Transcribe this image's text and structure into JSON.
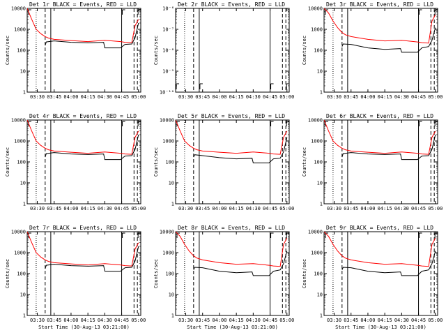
{
  "chart_data": [
    {
      "type": "line",
      "title": "Det 1r BLACK = Events, RED = LLD",
      "xlabel": "",
      "ylabel": "Counts/sec",
      "yscale": "log",
      "ylim": [
        1,
        10000
      ],
      "yticks": [
        "1",
        "10",
        "100",
        "1000",
        "10000"
      ],
      "xticks": [
        "03:30",
        "03:45",
        "04:00",
        "04:15",
        "04:30",
        "04:45",
        "05:00"
      ],
      "xrange": [
        "03:21",
        "05:02"
      ],
      "vlines": {
        "dotted": [
          "03:29"
        ],
        "dashed": [
          "03:37",
          "04:56",
          "04:59"
        ],
        "solid": [
          "03:42",
          "04:45"
        ]
      },
      "corner_marks": [],
      "series": [
        {
          "color": "#ff0000",
          "x": [
            "03:21",
            "03:25",
            "03:29",
            "03:33",
            "03:37",
            "03:40",
            "03:45",
            "04:00",
            "04:15",
            "04:30",
            "04:44",
            "04:48",
            "04:54",
            "04:57",
            "05:00"
          ],
          "y": [
            10000,
            3000,
            1000,
            620,
            450,
            380,
            330,
            290,
            260,
            300,
            260,
            240,
            230,
            1500,
            3000
          ]
        },
        {
          "color": "#000000",
          "x": [
            "03:37",
            "03:38",
            "03:45",
            "04:00",
            "04:15",
            "04:29",
            "04:30",
            "04:44",
            "04:48",
            "04:54",
            "04:57",
            "05:00"
          ],
          "y": [
            170,
            250,
            280,
            240,
            225,
            240,
            130,
            130,
            190,
            200,
            400,
            2000
          ]
        }
      ]
    },
    {
      "type": "line",
      "title": "Det 2r BLACK = Events, RED = LLD",
      "xlabel": "",
      "ylabel": "Counts/sec",
      "yscale": "log",
      "ylim": [
        1e-10,
        1e-06
      ],
      "yticks": [
        "10⁻¹⁰",
        "10⁻⁹",
        "10⁻⁸",
        "10⁻⁷",
        "10⁻⁶"
      ],
      "xticks": [
        "03:30",
        "03:45",
        "04:00",
        "04:15",
        "04:30",
        "04:45",
        "05:00"
      ],
      "xrange": [
        "03:21",
        "05:02"
      ],
      "vlines": {
        "dotted": [
          "03:29"
        ],
        "dashed": [
          "03:37",
          "04:56",
          "04:59"
        ],
        "solid": [
          "03:42",
          "04:45"
        ]
      },
      "corner_marks": [
        "03:21",
        "03:42",
        "04:45",
        "04:59"
      ],
      "series": []
    },
    {
      "type": "line",
      "title": "Det 3r BLACK = Events, RED = LLD",
      "xlabel": "",
      "ylabel": "Counts/sec",
      "yscale": "log",
      "ylim": [
        1,
        10000
      ],
      "yticks": [
        "1",
        "10",
        "100",
        "1000",
        "10000"
      ],
      "xticks": [
        "03:30",
        "03:45",
        "04:00",
        "04:15",
        "04:30",
        "04:45",
        "05:00"
      ],
      "xrange": [
        "03:21",
        "05:02"
      ],
      "vlines": {
        "dotted": [
          "03:29"
        ],
        "dashed": [
          "03:37",
          "04:56",
          "04:59"
        ],
        "solid": [
          "03:42",
          "04:45"
        ]
      },
      "corner_marks": [],
      "series": [
        {
          "color": "#ff0000",
          "x": [
            "03:21",
            "03:25",
            "03:29",
            "03:33",
            "03:37",
            "03:40",
            "03:45",
            "04:00",
            "04:15",
            "04:30",
            "04:44",
            "04:48",
            "04:54",
            "04:57",
            "05:00"
          ],
          "y": [
            10000,
            6000,
            2500,
            1200,
            700,
            550,
            450,
            330,
            280,
            300,
            250,
            230,
            220,
            2500,
            5000
          ]
        },
        {
          "color": "#000000",
          "x": [
            "03:37",
            "03:38",
            "03:45",
            "04:00",
            "04:15",
            "04:29",
            "04:30",
            "04:44",
            "04:48",
            "04:54",
            "04:57",
            "05:00"
          ],
          "y": [
            150,
            200,
            190,
            130,
            110,
            120,
            80,
            80,
            130,
            150,
            300,
            1200
          ]
        }
      ]
    },
    {
      "type": "line",
      "title": "Det 4r BLACK = Events, RED = LLD",
      "xlabel": "",
      "ylabel": "Counts/sec",
      "yscale": "log",
      "ylim": [
        1,
        10000
      ],
      "yticks": [
        "1",
        "10",
        "100",
        "1000",
        "10000"
      ],
      "xticks": [
        "03:30",
        "03:45",
        "04:00",
        "04:15",
        "04:30",
        "04:45",
        "05:00"
      ],
      "xrange": [
        "03:21",
        "05:02"
      ],
      "vlines": {
        "dotted": [
          "03:29"
        ],
        "dashed": [
          "03:37",
          "04:56",
          "04:59"
        ],
        "solid": [
          "03:42",
          "04:45"
        ]
      },
      "corner_marks": [],
      "series": [
        {
          "color": "#ff0000",
          "x": [
            "03:21",
            "03:25",
            "03:29",
            "03:33",
            "03:37",
            "03:40",
            "03:45",
            "04:00",
            "04:15",
            "04:30",
            "04:44",
            "04:48",
            "04:54",
            "04:57",
            "05:00"
          ],
          "y": [
            10000,
            3000,
            1000,
            620,
            450,
            380,
            330,
            290,
            260,
            300,
            260,
            240,
            230,
            1500,
            3000
          ]
        },
        {
          "color": "#000000",
          "x": [
            "03:37",
            "03:38",
            "03:45",
            "04:00",
            "04:15",
            "04:29",
            "04:30",
            "04:44",
            "04:48",
            "04:54",
            "04:57",
            "05:00"
          ],
          "y": [
            170,
            250,
            280,
            240,
            225,
            240,
            130,
            130,
            190,
            200,
            400,
            2000
          ]
        }
      ]
    },
    {
      "type": "line",
      "title": "Det 5r BLACK = Events, RED = LLD",
      "xlabel": "",
      "ylabel": "Counts/sec",
      "yscale": "log",
      "ylim": [
        1,
        10000
      ],
      "yticks": [
        "1",
        "10",
        "100",
        "1000",
        "10000"
      ],
      "xticks": [
        "03:30",
        "03:45",
        "04:00",
        "04:15",
        "04:30",
        "04:45",
        "05:00"
      ],
      "xrange": [
        "03:21",
        "05:02"
      ],
      "vlines": {
        "dotted": [
          "03:29"
        ],
        "dashed": [
          "03:37",
          "04:56",
          "04:59"
        ],
        "solid": [
          "03:42",
          "04:45"
        ]
      },
      "corner_marks": [],
      "series": [
        {
          "color": "#ff0000",
          "x": [
            "03:21",
            "03:25",
            "03:29",
            "03:33",
            "03:37",
            "03:40",
            "03:45",
            "04:00",
            "04:15",
            "04:30",
            "04:44",
            "04:48",
            "04:54",
            "04:57",
            "05:00"
          ],
          "y": [
            10000,
            3000,
            1000,
            620,
            450,
            380,
            330,
            290,
            260,
            300,
            260,
            240,
            230,
            1500,
            3000
          ]
        },
        {
          "color": "#000000",
          "x": [
            "03:37",
            "03:38",
            "03:45",
            "04:00",
            "04:15",
            "04:29",
            "04:30",
            "04:44",
            "04:48",
            "04:54",
            "04:57",
            "05:00"
          ],
          "y": [
            170,
            220,
            200,
            160,
            140,
            150,
            90,
            90,
            140,
            150,
            300,
            1500
          ]
        }
      ]
    },
    {
      "type": "line",
      "title": "Det 6r BLACK = Events, RED = LLD",
      "xlabel": "",
      "ylabel": "Counts/sec",
      "yscale": "log",
      "ylim": [
        1,
        10000
      ],
      "yticks": [
        "1",
        "10",
        "100",
        "1000",
        "10000"
      ],
      "xticks": [
        "03:30",
        "03:45",
        "04:00",
        "04:15",
        "04:30",
        "04:45",
        "05:00"
      ],
      "xrange": [
        "03:21",
        "05:02"
      ],
      "vlines": {
        "dotted": [
          "03:29"
        ],
        "dashed": [
          "03:37",
          "04:56",
          "04:59"
        ],
        "solid": [
          "03:42",
          "04:45"
        ]
      },
      "corner_marks": [],
      "series": [
        {
          "color": "#ff0000",
          "x": [
            "03:21",
            "03:25",
            "03:29",
            "03:33",
            "03:37",
            "03:40",
            "03:45",
            "04:00",
            "04:15",
            "04:30",
            "04:44",
            "04:48",
            "04:54",
            "04:57",
            "05:00"
          ],
          "y": [
            10000,
            3000,
            1000,
            620,
            450,
            380,
            330,
            290,
            260,
            300,
            260,
            240,
            230,
            1500,
            3000
          ]
        },
        {
          "color": "#000000",
          "x": [
            "03:37",
            "03:38",
            "03:45",
            "04:00",
            "04:15",
            "04:29",
            "04:30",
            "04:44",
            "04:48",
            "04:54",
            "04:57",
            "05:00"
          ],
          "y": [
            170,
            250,
            280,
            240,
            225,
            240,
            130,
            130,
            190,
            200,
            400,
            2000
          ]
        }
      ]
    },
    {
      "type": "line",
      "title": "Det 7r BLACK = Events, RED = LLD",
      "xlabel": "Start Time (30-Aug-13 03:21:00)",
      "ylabel": "Counts/sec",
      "yscale": "log",
      "ylim": [
        1,
        10000
      ],
      "yticks": [
        "1",
        "10",
        "100",
        "1000",
        "10000"
      ],
      "xticks": [
        "03:30",
        "03:45",
        "04:00",
        "04:15",
        "04:30",
        "04:45",
        "05:00"
      ],
      "xrange": [
        "03:21",
        "05:02"
      ],
      "vlines": {
        "dotted": [
          "03:29"
        ],
        "dashed": [
          "03:37",
          "04:56",
          "04:59"
        ],
        "solid": [
          "03:42",
          "04:45"
        ]
      },
      "corner_marks": [],
      "series": [
        {
          "color": "#ff0000",
          "x": [
            "03:21",
            "03:25",
            "03:29",
            "03:33",
            "03:37",
            "03:40",
            "03:45",
            "04:00",
            "04:15",
            "04:30",
            "04:44",
            "04:48",
            "04:54",
            "04:57",
            "05:00"
          ],
          "y": [
            10000,
            3000,
            1000,
            620,
            450,
            380,
            330,
            290,
            260,
            300,
            260,
            240,
            230,
            1500,
            3000
          ]
        },
        {
          "color": "#000000",
          "x": [
            "03:37",
            "03:38",
            "03:45",
            "04:00",
            "04:15",
            "04:29",
            "04:30",
            "04:44",
            "04:48",
            "04:54",
            "04:57",
            "05:00"
          ],
          "y": [
            170,
            250,
            280,
            240,
            225,
            240,
            130,
            130,
            190,
            200,
            400,
            2000
          ]
        }
      ]
    },
    {
      "type": "line",
      "title": "Det 8r BLACK = Events, RED = LLD",
      "xlabel": "Start Time (30-Aug-13 03:21:00)",
      "ylabel": "Counts/sec",
      "yscale": "log",
      "ylim": [
        1,
        10000
      ],
      "yticks": [
        "1",
        "10",
        "100",
        "1000",
        "10000"
      ],
      "xticks": [
        "03:30",
        "03:45",
        "04:00",
        "04:15",
        "04:30",
        "04:45",
        "05:00"
      ],
      "xrange": [
        "03:21",
        "05:02"
      ],
      "vlines": {
        "dotted": [
          "03:29"
        ],
        "dashed": [
          "03:37",
          "04:56",
          "04:59"
        ],
        "solid": [
          "03:42",
          "04:45"
        ]
      },
      "corner_marks": [],
      "series": [
        {
          "color": "#ff0000",
          "x": [
            "03:21",
            "03:25",
            "03:29",
            "03:33",
            "03:37",
            "03:40",
            "03:45",
            "04:00",
            "04:15",
            "04:30",
            "04:44",
            "04:48",
            "04:54",
            "04:57",
            "05:00"
          ],
          "y": [
            10000,
            6000,
            2500,
            1200,
            700,
            550,
            450,
            330,
            280,
            300,
            250,
            230,
            220,
            2500,
            5000
          ]
        },
        {
          "color": "#000000",
          "x": [
            "03:37",
            "03:38",
            "03:45",
            "04:00",
            "04:15",
            "04:29",
            "04:30",
            "04:44",
            "04:48",
            "04:54",
            "04:57",
            "05:00"
          ],
          "y": [
            150,
            200,
            190,
            130,
            110,
            120,
            80,
            80,
            130,
            150,
            300,
            1200
          ]
        }
      ]
    },
    {
      "type": "line",
      "title": "Det 9r BLACK = Events, RED = LLD",
      "xlabel": "Start Time (30-Aug-13 03:21:00)",
      "ylabel": "Counts/sec",
      "yscale": "log",
      "ylim": [
        1,
        10000
      ],
      "yticks": [
        "1",
        "10",
        "100",
        "1000",
        "10000"
      ],
      "xticks": [
        "03:30",
        "03:45",
        "04:00",
        "04:15",
        "04:30",
        "04:45",
        "05:00"
      ],
      "xrange": [
        "03:21",
        "05:02"
      ],
      "vlines": {
        "dotted": [
          "03:29"
        ],
        "dashed": [
          "03:37",
          "04:56",
          "04:59"
        ],
        "solid": [
          "03:42",
          "04:45"
        ]
      },
      "corner_marks": [],
      "series": [
        {
          "color": "#ff0000",
          "x": [
            "03:21",
            "03:25",
            "03:29",
            "03:33",
            "03:37",
            "03:40",
            "03:45",
            "04:00",
            "04:15",
            "04:30",
            "04:44",
            "04:48",
            "04:54",
            "04:57",
            "05:00"
          ],
          "y": [
            10000,
            6000,
            2500,
            1200,
            700,
            550,
            450,
            330,
            280,
            300,
            250,
            230,
            220,
            2500,
            5000
          ]
        },
        {
          "color": "#000000",
          "x": [
            "03:37",
            "03:38",
            "03:45",
            "04:00",
            "04:15",
            "04:29",
            "04:30",
            "04:44",
            "04:48",
            "04:54",
            "04:57",
            "05:00"
          ],
          "y": [
            150,
            200,
            190,
            130,
            110,
            120,
            80,
            80,
            130,
            150,
            300,
            1200
          ]
        }
      ]
    }
  ]
}
